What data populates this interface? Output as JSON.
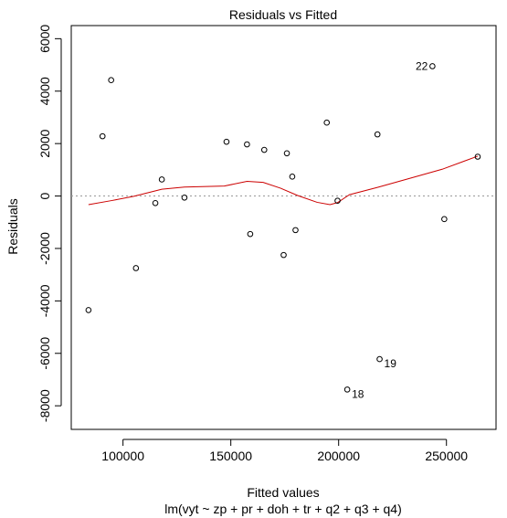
{
  "chart_data": {
    "type": "scatter",
    "title": "Residuals vs Fitted",
    "xlabel": "Fitted values",
    "subtitle": "lm(vyt ~ zp + pr + doh + tr + q2 + q3 + q4)",
    "ylabel": "Residuals",
    "xlim": [
      76000,
      273000
    ],
    "ylim": [
      -8900,
      6500
    ],
    "x_ticks": [
      100000,
      150000,
      200000,
      250000
    ],
    "y_ticks": [
      -8000,
      -6000,
      -4000,
      -2000,
      0,
      2000,
      4000,
      6000
    ],
    "grid": false,
    "points": [
      {
        "x": 84000,
        "y": -4350
      },
      {
        "x": 90500,
        "y": 2280
      },
      {
        "x": 94500,
        "y": 4420
      },
      {
        "x": 106000,
        "y": -2750
      },
      {
        "x": 115000,
        "y": -270
      },
      {
        "x": 118000,
        "y": 630
      },
      {
        "x": 128500,
        "y": -60
      },
      {
        "x": 148000,
        "y": 2070
      },
      {
        "x": 157500,
        "y": 1970
      },
      {
        "x": 159000,
        "y": -1450
      },
      {
        "x": 165500,
        "y": 1760
      },
      {
        "x": 174500,
        "y": -2250
      },
      {
        "x": 176000,
        "y": 1630
      },
      {
        "x": 178500,
        "y": 740
      },
      {
        "x": 180000,
        "y": -1300
      },
      {
        "x": 194500,
        "y": 2800
      },
      {
        "x": 199500,
        "y": -180
      },
      {
        "x": 204000,
        "y": -7380
      },
      {
        "x": 218000,
        "y": 2350
      },
      {
        "x": 219000,
        "y": -6220
      },
      {
        "x": 243500,
        "y": 4950
      },
      {
        "x": 249000,
        "y": -880
      },
      {
        "x": 264500,
        "y": 1500
      }
    ],
    "point_labels": [
      {
        "text": "22",
        "x": 243500,
        "y": 4950,
        "side": "left"
      },
      {
        "text": "19",
        "x": 219000,
        "y": -6220,
        "side": "right"
      },
      {
        "text": "18",
        "x": 204000,
        "y": -7380,
        "side": "right"
      }
    ],
    "smooth_line": {
      "color": "#cc0000",
      "x": [
        84000,
        95000,
        105000,
        118000,
        128500,
        147000,
        157500,
        165000,
        173000,
        181000,
        190000,
        196000,
        199500,
        205000,
        218000,
        232000,
        248000,
        264500
      ],
      "y": [
        -330,
        -170,
        -10,
        260,
        340,
        380,
        560,
        520,
        300,
        20,
        -240,
        -330,
        -250,
        50,
        330,
        650,
        1020,
        1520
      ]
    },
    "reference_line": {
      "y": 0,
      "color": "#999999",
      "style": "dotted"
    }
  }
}
